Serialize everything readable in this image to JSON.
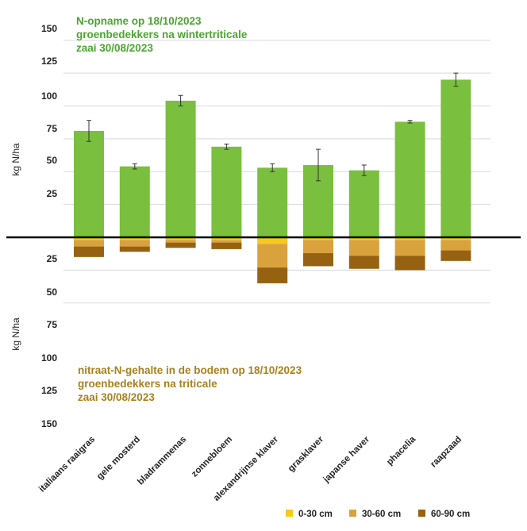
{
  "chart_data": {
    "type": "bar",
    "categories": [
      "italiaans raaigras",
      "gele mosterd",
      "bladrammenas",
      "zonnebloem",
      "alexandrijnse klaver",
      "grasklaver",
      "japanse haver",
      "phacelia",
      "raapzaad"
    ],
    "top": {
      "title_lines": [
        "N-opname op 18/10/2023",
        "groenbedekkers na wintertriticale",
        "zaai 30/08/2023"
      ],
      "ylabel": "kg N/ha",
      "ylim": [
        0,
        150
      ],
      "ticks": [
        "150",
        "125",
        "100",
        "75",
        "50",
        "25"
      ],
      "tick_values": [
        150,
        125,
        100,
        75,
        50,
        25
      ],
      "series": [
        {
          "name": "N-opname",
          "color": "#7bbf3e",
          "values": [
            81,
            54,
            104,
            69,
            53,
            55,
            51,
            88,
            120
          ],
          "errors": [
            8,
            2,
            4,
            2,
            3,
            12,
            4,
            1,
            5
          ]
        }
      ]
    },
    "bottom": {
      "title_lines": [
        "nitraat-N-gehalte in de bodem op 18/10/2023",
        "groenbedekkers na triticale",
        "zaai 30/08/2023"
      ],
      "ylabel": "kg N/ha",
      "ylim": [
        0,
        150
      ],
      "ticks": [
        "25",
        "50",
        "75",
        "100",
        "125",
        "150"
      ],
      "tick_values": [
        25,
        50,
        75,
        100,
        125,
        150
      ],
      "series": [
        {
          "name": "0-30 cm",
          "color": "#f7c918",
          "values": [
            2,
            2,
            2,
            2,
            5,
            2,
            2,
            2,
            2
          ]
        },
        {
          "name": "30-60 cm",
          "color": "#d9a23d",
          "values": [
            5,
            5,
            2,
            2,
            18,
            10,
            12,
            12,
            8
          ]
        },
        {
          "name": "60-90 cm",
          "color": "#966212",
          "values": [
            8,
            4,
            4,
            5,
            12,
            10,
            10,
            11,
            8
          ]
        }
      ]
    },
    "legend": [
      {
        "label": "0-30 cm",
        "color": "#f7c918"
      },
      {
        "label": "30-60 cm",
        "color": "#d9a23d"
      },
      {
        "label": "60-90 cm",
        "color": "#966212"
      }
    ]
  }
}
